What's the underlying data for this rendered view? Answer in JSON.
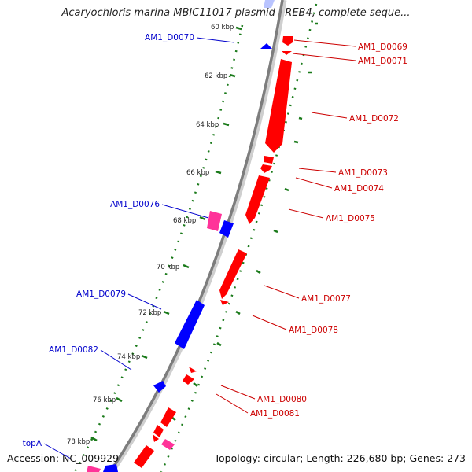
{
  "title": "Acaryochloris marina MBIC11017 plasmid pREB4, complete seque...",
  "footer": {
    "accession": "Accession: NC_009929",
    "summary": "Topology: circular; Length: 226,680 bp; Genes: 273"
  },
  "colors": {
    "forward": "#ff0000",
    "reverse": "#0000ff",
    "rna": "#ff3399",
    "backbone": "#888888",
    "tick": "#1a7a1a"
  },
  "kbp_labels": [
    {
      "kb": 60,
      "text": "60 kbp"
    },
    {
      "kb": 62,
      "text": "62 kbp"
    },
    {
      "kb": 64,
      "text": "64 kbp"
    },
    {
      "kb": 66,
      "text": "66 kbp"
    },
    {
      "kb": 68,
      "text": "68 kbp"
    },
    {
      "kb": 70,
      "text": "70 kbp"
    },
    {
      "kb": 72,
      "text": "72 kbp"
    },
    {
      "kb": 74,
      "text": "74 kbp"
    },
    {
      "kb": 76,
      "text": "76 kbp"
    },
    {
      "kb": 78,
      "text": "78 kbp"
    }
  ],
  "genes": [
    {
      "label": "AM1_D0069",
      "side": "right",
      "strand": "forward"
    },
    {
      "label": "AM1_D0071",
      "side": "right",
      "strand": "forward"
    },
    {
      "label": "AM1_D0072",
      "side": "right",
      "strand": "forward"
    },
    {
      "label": "AM1_D0073",
      "side": "right",
      "strand": "forward"
    },
    {
      "label": "AM1_D0074",
      "side": "right",
      "strand": "forward"
    },
    {
      "label": "AM1_D0075",
      "side": "right",
      "strand": "forward"
    },
    {
      "label": "AM1_D0077",
      "side": "right",
      "strand": "forward"
    },
    {
      "label": "AM1_D0078",
      "side": "right",
      "strand": "forward"
    },
    {
      "label": "AM1_D0080",
      "side": "right",
      "strand": "forward"
    },
    {
      "label": "AM1_D0081",
      "side": "right",
      "strand": "forward"
    },
    {
      "label": "AM1_D0070",
      "side": "left",
      "strand": "reverse"
    },
    {
      "label": "AM1_D0076",
      "side": "left",
      "strand": "reverse"
    },
    {
      "label": "AM1_D0079",
      "side": "left",
      "strand": "reverse"
    },
    {
      "label": "AM1_D0082",
      "side": "left",
      "strand": "reverse"
    },
    {
      "label": "topA",
      "side": "left",
      "strand": "reverse"
    }
  ]
}
